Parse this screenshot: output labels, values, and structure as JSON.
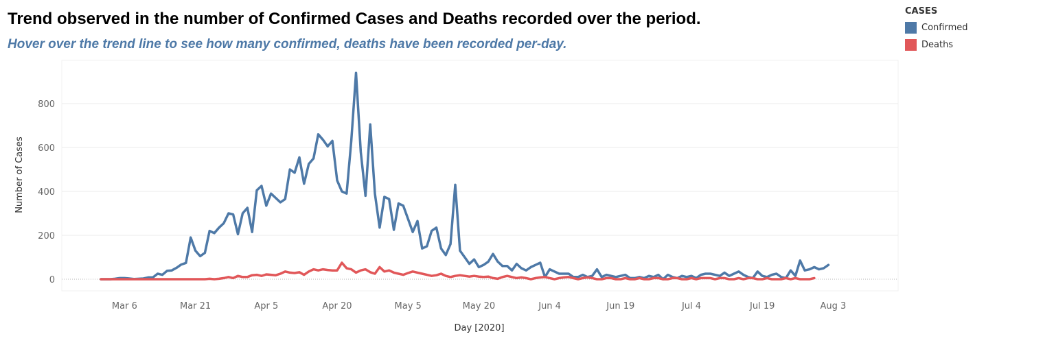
{
  "chart_data": {
    "type": "line",
    "title": "Trend observed in the number of Confirmed Cases and Deaths recorded over the period.",
    "subtitle": "Hover over the trend line to see how many confirmed, deaths have been recorded per-day.",
    "xlabel": "Day [2020]",
    "ylabel": "Number of Cases",
    "x_start": "2020-03-01",
    "x_ticks": [
      "Mar 6",
      "Mar 21",
      "Apr 5",
      "Apr 20",
      "May 5",
      "May 20",
      "Jun 4",
      "Jun 19",
      "Jul 4",
      "Jul 19",
      "Aug 3"
    ],
    "y_ticks": [
      0,
      200,
      400,
      600,
      800
    ],
    "ylim": [
      -50,
      1000
    ],
    "grid": true,
    "legend_title": "CASES",
    "legend_position": "top-right",
    "series": [
      {
        "name": "Confirmed",
        "color": "#4e79a7",
        "values": [
          0,
          0,
          0,
          2,
          5,
          5,
          3,
          1,
          2,
          3,
          8,
          8,
          25,
          20,
          38,
          40,
          52,
          67,
          74,
          190,
          130,
          105,
          120,
          220,
          210,
          235,
          255,
          300,
          295,
          205,
          300,
          325,
          215,
          405,
          425,
          335,
          390,
          370,
          350,
          365,
          500,
          485,
          555,
          435,
          525,
          550,
          660,
          635,
          605,
          630,
          450,
          400,
          390,
          630,
          940,
          580,
          380,
          705,
          390,
          235,
          375,
          365,
          225,
          345,
          335,
          275,
          215,
          265,
          140,
          150,
          220,
          235,
          140,
          110,
          160,
          430,
          130,
          100,
          70,
          90,
          55,
          65,
          80,
          115,
          80,
          60,
          60,
          40,
          70,
          50,
          40,
          55,
          65,
          75,
          10,
          45,
          35,
          25,
          25,
          25,
          10,
          10,
          20,
          10,
          15,
          45,
          10,
          20,
          15,
          10,
          15,
          20,
          5,
          5,
          10,
          5,
          15,
          10,
          20,
          0,
          20,
          10,
          5,
          15,
          10,
          15,
          5,
          20,
          25,
          25,
          20,
          15,
          30,
          15,
          25,
          35,
          20,
          10,
          5,
          35,
          15,
          10,
          20,
          25,
          10,
          5,
          40,
          15,
          85,
          40,
          45,
          55,
          45,
          50,
          65
        ]
      },
      {
        "name": "Deaths",
        "color": "#e15759",
        "values": [
          0,
          0,
          0,
          0,
          0,
          0,
          0,
          0,
          0,
          0,
          0,
          0,
          0,
          0,
          0,
          0,
          0,
          0,
          0,
          0,
          0,
          0,
          0,
          2,
          0,
          2,
          5,
          10,
          5,
          15,
          10,
          10,
          18,
          20,
          15,
          22,
          20,
          18,
          25,
          35,
          30,
          28,
          32,
          20,
          35,
          45,
          40,
          45,
          42,
          40,
          40,
          75,
          50,
          45,
          30,
          40,
          45,
          32,
          25,
          55,
          35,
          40,
          30,
          25,
          20,
          28,
          35,
          30,
          25,
          20,
          15,
          18,
          25,
          15,
          10,
          15,
          18,
          15,
          12,
          15,
          12,
          10,
          12,
          5,
          2,
          10,
          15,
          10,
          5,
          8,
          5,
          0,
          5,
          8,
          10,
          5,
          0,
          5,
          8,
          10,
          5,
          0,
          5,
          8,
          5,
          0,
          0,
          5,
          5,
          0,
          0,
          5,
          0,
          0,
          5,
          0,
          0,
          5,
          5,
          0,
          0,
          5,
          5,
          0,
          0,
          5,
          0,
          5,
          5,
          5,
          0,
          5,
          5,
          0,
          0,
          5,
          0,
          5,
          5,
          0,
          0,
          5,
          0,
          0,
          0,
          5,
          0,
          5,
          0,
          0,
          0,
          5
        ]
      }
    ]
  }
}
